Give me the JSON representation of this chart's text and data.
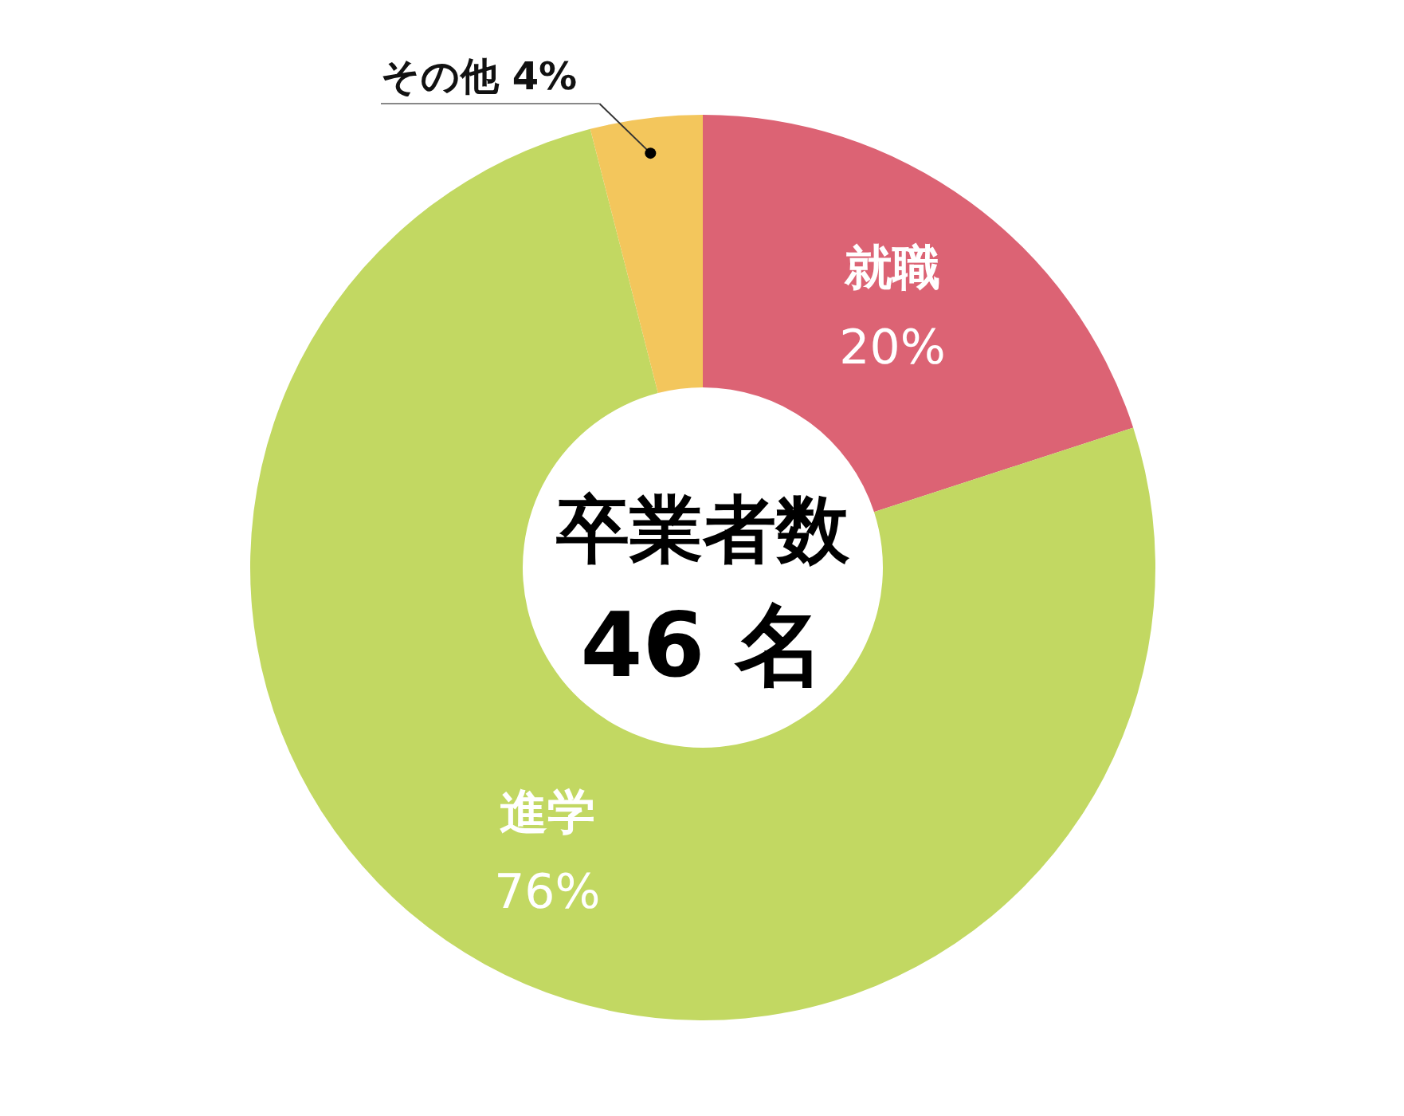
{
  "chart_data": {
    "type": "donut",
    "title": "卒業者数",
    "annotations": [
      "46 名"
    ],
    "categories": [
      "就職",
      "進学",
      "その他"
    ],
    "values": [
      20,
      76,
      4
    ],
    "colors": [
      "#dc6374",
      "#c2d862",
      "#f3c65c"
    ],
    "value_labels": [
      "20%",
      "76%",
      "4%"
    ]
  }
}
